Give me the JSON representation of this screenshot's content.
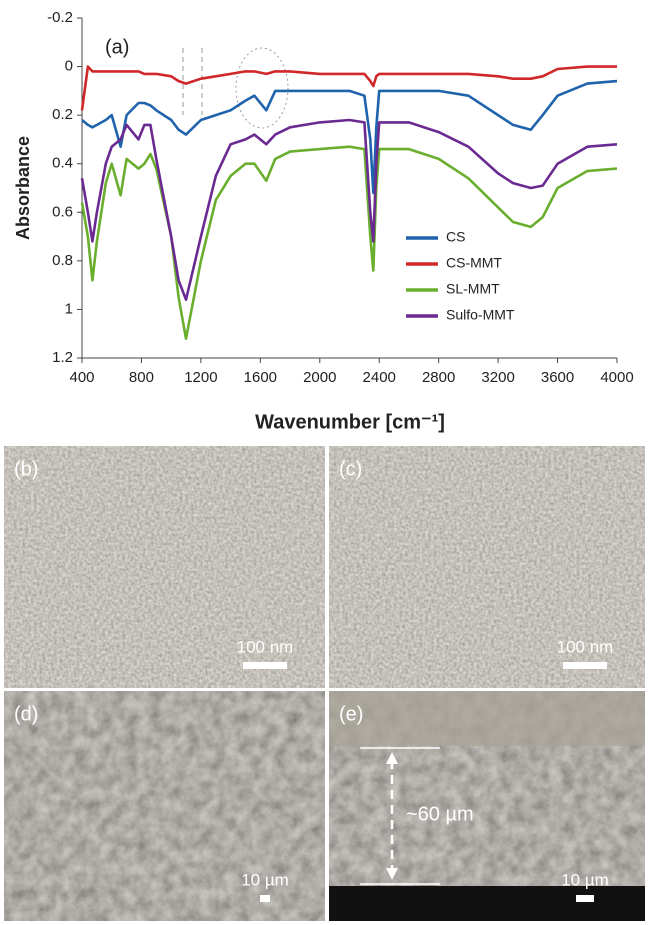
{
  "chart_data": {
    "type": "line",
    "panel_label": "(a)",
    "y_label": "Absorbance",
    "x_label": "Wavenumber [cm⁻¹]",
    "xlim": [
      400,
      4000
    ],
    "xticks": [
      400,
      800,
      1200,
      1600,
      2000,
      2400,
      2800,
      3200,
      3600,
      4000
    ],
    "ylim": [
      -0.2,
      1.2
    ],
    "yticks": [
      -0.2,
      0,
      0.2,
      0.4,
      0.6,
      0.8,
      1,
      1.2
    ],
    "y_inverted": true,
    "x": [
      400,
      440,
      470,
      500,
      560,
      600,
      660,
      700,
      780,
      820,
      860,
      900,
      1000,
      1050,
      1100,
      1200,
      1300,
      1400,
      1500,
      1560,
      1640,
      1700,
      1800,
      2000,
      2200,
      2300,
      2340,
      2360,
      2380,
      2400,
      2600,
      2800,
      3000,
      3200,
      3300,
      3420,
      3500,
      3600,
      3800,
      4000
    ],
    "series": [
      {
        "name": "CS",
        "color": "#1f63ad",
        "values": [
          0.22,
          0.24,
          0.25,
          0.24,
          0.22,
          0.2,
          0.33,
          0.2,
          0.15,
          0.15,
          0.16,
          0.18,
          0.22,
          0.26,
          0.28,
          0.22,
          0.2,
          0.18,
          0.14,
          0.12,
          0.18,
          0.1,
          0.1,
          0.1,
          0.1,
          0.12,
          0.3,
          0.52,
          0.25,
          0.1,
          0.1,
          0.1,
          0.12,
          0.2,
          0.24,
          0.26,
          0.2,
          0.12,
          0.07,
          0.06
        ]
      },
      {
        "name": "CS-MMT",
        "color": "#d0282a",
        "values": [
          0.18,
          0,
          0.02,
          0.02,
          0.02,
          0.02,
          0.02,
          0.02,
          0.02,
          0.03,
          0.03,
          0.03,
          0.04,
          0.06,
          0.07,
          0.05,
          0.04,
          0.03,
          0.02,
          0.02,
          0.03,
          0.02,
          0.02,
          0.03,
          0.03,
          0.03,
          0.06,
          0.08,
          0.04,
          0.03,
          0.03,
          0.03,
          0.03,
          0.04,
          0.05,
          0.05,
          0.04,
          0.01,
          0,
          0
        ]
      },
      {
        "name": "SL-MMT",
        "color": "#6aae2e",
        "values": [
          0.56,
          0.7,
          0.88,
          0.72,
          0.48,
          0.4,
          0.53,
          0.38,
          0.42,
          0.4,
          0.36,
          0.42,
          0.7,
          0.95,
          1.12,
          0.8,
          0.55,
          0.45,
          0.4,
          0.4,
          0.47,
          0.38,
          0.35,
          0.34,
          0.33,
          0.34,
          0.7,
          0.84,
          0.5,
          0.34,
          0.34,
          0.38,
          0.46,
          0.58,
          0.64,
          0.66,
          0.62,
          0.5,
          0.43,
          0.42
        ]
      },
      {
        "name": "Sulfo-MMT",
        "color": "#6a2a92",
        "values": [
          0.46,
          0.6,
          0.72,
          0.6,
          0.4,
          0.33,
          0.3,
          0.24,
          0.3,
          0.24,
          0.24,
          0.38,
          0.7,
          0.88,
          0.96,
          0.7,
          0.45,
          0.32,
          0.3,
          0.28,
          0.32,
          0.28,
          0.25,
          0.23,
          0.22,
          0.23,
          0.6,
          0.72,
          0.4,
          0.23,
          0.23,
          0.27,
          0.33,
          0.44,
          0.48,
          0.5,
          0.49,
          0.4,
          0.33,
          0.32
        ]
      }
    ]
  },
  "images": [
    {
      "label": "(b)",
      "scale": "100 nm"
    },
    {
      "label": "(c)",
      "scale": "100 nm"
    },
    {
      "label": "(d)",
      "scale": "10 µm"
    },
    {
      "label": "(e)",
      "scale": "10 µm",
      "annotation": "~60 µm"
    }
  ]
}
